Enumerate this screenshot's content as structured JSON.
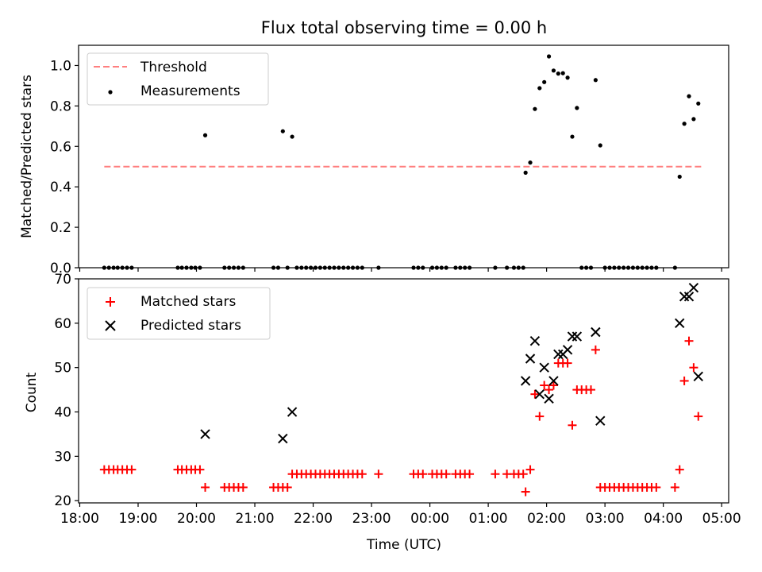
{
  "chart_data": {
    "type": "scatter",
    "title": "Flux total observing time = 0.00 h",
    "xlabel": "Time (UTC)",
    "x_ticks": [
      "18:00",
      "19:00",
      "20:00",
      "21:00",
      "22:00",
      "23:00",
      "00:00",
      "01:00",
      "02:00",
      "03:00",
      "04:00",
      "05:00"
    ],
    "x_range_hours": [
      17.98,
      29.12
    ],
    "panels": [
      {
        "ylabel": "Matched/Predicted stars",
        "ylim": [
          0,
          1.1
        ],
        "y_ticks": [
          "0.0",
          "0.2",
          "0.4",
          "0.6",
          "0.8",
          "1.0"
        ],
        "legend": {
          "position": "upper left",
          "entries": [
            "Threshold",
            "Measurements"
          ]
        },
        "threshold": {
          "name": "Threshold",
          "value": 0.5,
          "x_start": 18.42,
          "x_end": 28.65,
          "color": "#ff7f7f"
        },
        "series": [
          {
            "name": "Measurements",
            "color": "#000000",
            "marker": "dot",
            "points": [
              [
                18.42,
                0
              ],
              [
                18.5,
                0
              ],
              [
                18.58,
                0
              ],
              [
                18.65,
                0
              ],
              [
                18.73,
                0
              ],
              [
                18.81,
                0
              ],
              [
                18.89,
                0
              ],
              [
                19.68,
                0
              ],
              [
                19.75,
                0
              ],
              [
                19.83,
                0
              ],
              [
                19.91,
                0
              ],
              [
                19.98,
                0
              ],
              [
                20.06,
                0
              ],
              [
                20.15,
                0.655
              ],
              [
                20.48,
                0
              ],
              [
                20.56,
                0
              ],
              [
                20.64,
                0
              ],
              [
                20.72,
                0
              ],
              [
                20.8,
                0
              ],
              [
                21.32,
                0
              ],
              [
                21.4,
                0
              ],
              [
                21.48,
                0.675
              ],
              [
                21.56,
                0
              ],
              [
                21.64,
                0.648
              ],
              [
                21.72,
                0
              ],
              [
                21.8,
                0
              ],
              [
                21.88,
                0
              ],
              [
                21.96,
                0
              ],
              [
                22.04,
                0
              ],
              [
                22.12,
                0
              ],
              [
                22.2,
                0
              ],
              [
                22.28,
                0
              ],
              [
                22.36,
                0
              ],
              [
                22.44,
                0
              ],
              [
                22.52,
                0
              ],
              [
                22.6,
                0
              ],
              [
                22.68,
                0
              ],
              [
                22.76,
                0
              ],
              [
                22.84,
                0
              ],
              [
                23.12,
                0
              ],
              [
                23.72,
                0
              ],
              [
                23.8,
                0
              ],
              [
                23.88,
                0
              ],
              [
                24.04,
                0
              ],
              [
                24.12,
                0
              ],
              [
                24.2,
                0
              ],
              [
                24.28,
                0
              ],
              [
                24.44,
                0
              ],
              [
                24.52,
                0
              ],
              [
                24.6,
                0
              ],
              [
                24.68,
                0
              ],
              [
                25.12,
                0
              ],
              [
                25.32,
                0
              ],
              [
                25.44,
                0
              ],
              [
                25.52,
                0
              ],
              [
                25.6,
                0
              ],
              [
                25.64,
                0.47
              ],
              [
                25.72,
                0.52
              ],
              [
                25.8,
                0.785
              ],
              [
                25.88,
                0.888
              ],
              [
                25.96,
                0.918
              ],
              [
                26.04,
                1.045
              ],
              [
                26.12,
                0.975
              ],
              [
                26.2,
                0.96
              ],
              [
                26.28,
                0.962
              ],
              [
                26.36,
                0.94
              ],
              [
                26.44,
                0.648
              ],
              [
                26.52,
                0.79
              ],
              [
                26.6,
                0
              ],
              [
                26.68,
                0
              ],
              [
                26.76,
                0
              ],
              [
                26.84,
                0.928
              ],
              [
                26.92,
                0.605
              ],
              [
                27.0,
                0
              ],
              [
                27.08,
                0
              ],
              [
                27.16,
                0
              ],
              [
                27.24,
                0
              ],
              [
                27.32,
                0
              ],
              [
                27.4,
                0
              ],
              [
                27.48,
                0
              ],
              [
                27.56,
                0
              ],
              [
                27.64,
                0
              ],
              [
                27.72,
                0
              ],
              [
                27.8,
                0
              ],
              [
                27.88,
                0
              ],
              [
                28.2,
                0
              ],
              [
                28.28,
                0.45
              ],
              [
                28.36,
                0.712
              ],
              [
                28.44,
                0.848
              ],
              [
                28.52,
                0.735
              ],
              [
                28.6,
                0.812
              ]
            ]
          }
        ]
      },
      {
        "ylabel": "Count",
        "ylim": [
          19.5,
          70
        ],
        "y_ticks": [
          "20",
          "30",
          "40",
          "50",
          "60",
          "70"
        ],
        "legend": {
          "position": "upper left",
          "entries": [
            "Matched stars",
            "Predicted stars"
          ]
        },
        "series": [
          {
            "name": "Matched stars",
            "color": "#ff0000",
            "marker": "plus",
            "points": [
              [
                18.42,
                27
              ],
              [
                18.5,
                27
              ],
              [
                18.58,
                27
              ],
              [
                18.65,
                27
              ],
              [
                18.73,
                27
              ],
              [
                18.81,
                27
              ],
              [
                18.89,
                27
              ],
              [
                19.68,
                27
              ],
              [
                19.75,
                27
              ],
              [
                19.83,
                27
              ],
              [
                19.91,
                27
              ],
              [
                19.98,
                27
              ],
              [
                20.06,
                27
              ],
              [
                20.15,
                23
              ],
              [
                20.48,
                23
              ],
              [
                20.56,
                23
              ],
              [
                20.64,
                23
              ],
              [
                20.72,
                23
              ],
              [
                20.8,
                23
              ],
              [
                21.32,
                23
              ],
              [
                21.4,
                23
              ],
              [
                21.48,
                23
              ],
              [
                21.56,
                23
              ],
              [
                21.64,
                26
              ],
              [
                21.72,
                26
              ],
              [
                21.8,
                26
              ],
              [
                21.88,
                26
              ],
              [
                21.96,
                26
              ],
              [
                22.04,
                26
              ],
              [
                22.12,
                26
              ],
              [
                22.2,
                26
              ],
              [
                22.28,
                26
              ],
              [
                22.36,
                26
              ],
              [
                22.44,
                26
              ],
              [
                22.52,
                26
              ],
              [
                22.6,
                26
              ],
              [
                22.68,
                26
              ],
              [
                22.76,
                26
              ],
              [
                22.84,
                26
              ],
              [
                23.12,
                26
              ],
              [
                23.72,
                26
              ],
              [
                23.8,
                26
              ],
              [
                23.88,
                26
              ],
              [
                24.04,
                26
              ],
              [
                24.12,
                26
              ],
              [
                24.2,
                26
              ],
              [
                24.28,
                26
              ],
              [
                24.44,
                26
              ],
              [
                24.52,
                26
              ],
              [
                24.6,
                26
              ],
              [
                24.68,
                26
              ],
              [
                25.12,
                26
              ],
              [
                25.32,
                26
              ],
              [
                25.44,
                26
              ],
              [
                25.52,
                26
              ],
              [
                25.6,
                26
              ],
              [
                25.64,
                22
              ],
              [
                25.72,
                27
              ],
              [
                25.8,
                44
              ],
              [
                25.88,
                39
              ],
              [
                25.96,
                46
              ],
              [
                26.04,
                45
              ],
              [
                26.12,
                46
              ],
              [
                26.2,
                51
              ],
              [
                26.28,
                51
              ],
              [
                26.36,
                51
              ],
              [
                26.44,
                37
              ],
              [
                26.52,
                45
              ],
              [
                26.6,
                45
              ],
              [
                26.68,
                45
              ],
              [
                26.76,
                45
              ],
              [
                26.84,
                54
              ],
              [
                26.92,
                23
              ],
              [
                27.0,
                23
              ],
              [
                27.08,
                23
              ],
              [
                27.16,
                23
              ],
              [
                27.24,
                23
              ],
              [
                27.32,
                23
              ],
              [
                27.4,
                23
              ],
              [
                27.48,
                23
              ],
              [
                27.56,
                23
              ],
              [
                27.64,
                23
              ],
              [
                27.72,
                23
              ],
              [
                27.8,
                23
              ],
              [
                27.88,
                23
              ],
              [
                28.2,
                23
              ],
              [
                28.28,
                27
              ],
              [
                28.36,
                47
              ],
              [
                28.44,
                56
              ],
              [
                28.52,
                50
              ],
              [
                28.6,
                39
              ]
            ]
          },
          {
            "name": "Predicted stars",
            "color": "#000000",
            "marker": "x",
            "points": [
              [
                20.15,
                35
              ],
              [
                21.48,
                34
              ],
              [
                21.64,
                40
              ],
              [
                25.64,
                47
              ],
              [
                25.72,
                52
              ],
              [
                25.8,
                56
              ],
              [
                25.88,
                44
              ],
              [
                25.96,
                50
              ],
              [
                26.04,
                43
              ],
              [
                26.12,
                47
              ],
              [
                26.2,
                53
              ],
              [
                26.28,
                53
              ],
              [
                26.36,
                54
              ],
              [
                26.44,
                57
              ],
              [
                26.52,
                57
              ],
              [
                26.84,
                58
              ],
              [
                26.92,
                38
              ],
              [
                28.28,
                60
              ],
              [
                28.36,
                66
              ],
              [
                28.44,
                66
              ],
              [
                28.52,
                68
              ],
              [
                28.6,
                48
              ]
            ]
          }
        ]
      }
    ]
  }
}
